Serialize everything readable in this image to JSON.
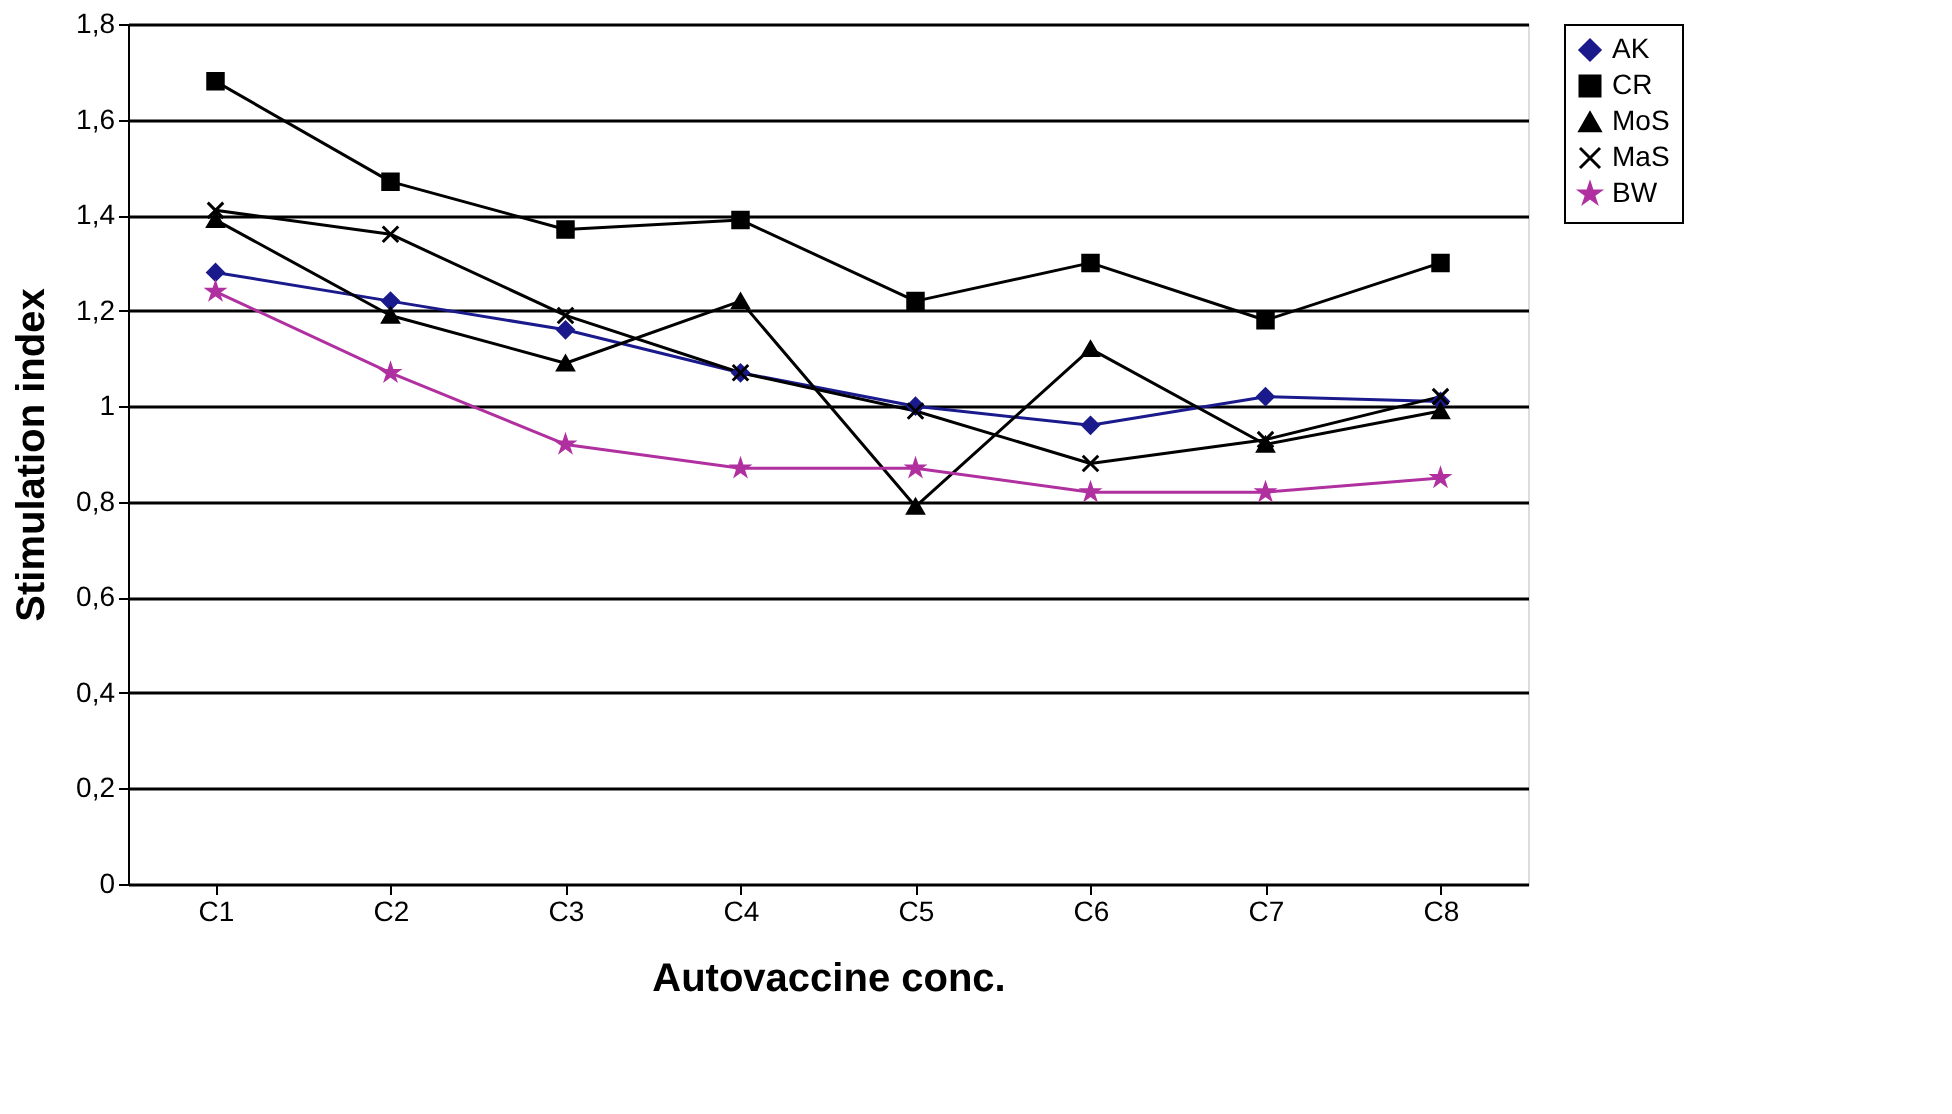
{
  "chart_data": {
    "type": "line",
    "xlabel": "Autovaccine conc.",
    "ylabel": "Stimulation index",
    "categories": [
      "C1",
      "C2",
      "C3",
      "C4",
      "C5",
      "C6",
      "C7",
      "C8"
    ],
    "series": [
      {
        "name": "AK",
        "color": "#1a1a8c",
        "marker": "diamond",
        "values": [
          1.28,
          1.22,
          1.16,
          1.07,
          1.0,
          0.96,
          1.02,
          1.01
        ]
      },
      {
        "name": "CR",
        "color": "#000000",
        "marker": "square",
        "values": [
          1.68,
          1.47,
          1.37,
          1.39,
          1.22,
          1.3,
          1.18,
          1.3
        ]
      },
      {
        "name": "MoS",
        "color": "#000000",
        "marker": "triangle",
        "values": [
          1.39,
          1.19,
          1.09,
          1.22,
          0.79,
          1.12,
          0.92,
          0.99
        ]
      },
      {
        "name": "MaS",
        "color": "#000000",
        "marker": "cross",
        "values": [
          1.41,
          1.36,
          1.19,
          1.07,
          0.99,
          0.88,
          0.93,
          1.02
        ]
      },
      {
        "name": "BW",
        "color": "#b030a0",
        "marker": "star",
        "values": [
          1.24,
          1.07,
          0.92,
          0.87,
          0.87,
          0.82,
          0.82,
          0.85
        ]
      }
    ],
    "ylim": [
      0,
      1.8
    ],
    "yticks": [
      0,
      {
        "value": 0.2,
        "label": "0,2"
      },
      {
        "value": 0.4,
        "label": "0,4"
      },
      {
        "value": 0.6,
        "label": "0,6"
      },
      {
        "value": 0.8,
        "label": "0,8"
      },
      1,
      {
        "value": 1.2,
        "label": "1,2"
      },
      {
        "value": 1.4,
        "label": "1,4"
      },
      {
        "value": 1.6,
        "label": "1,6"
      },
      {
        "value": 1.8,
        "label": "1,8"
      }
    ],
    "grid": "y",
    "legend": "right",
    "line_style": "solid"
  }
}
